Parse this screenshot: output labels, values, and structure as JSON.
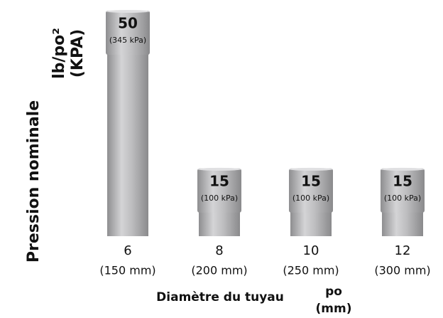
{
  "chart_data": {
    "type": "bar",
    "y_axis_label": "Pression nominale",
    "y_axis_units": [
      "lb/po²",
      "(KPA)"
    ],
    "x_axis_label": "Diamètre du tuyau",
    "x_axis_units": [
      "po",
      "(mm)"
    ],
    "categories": [
      "6",
      "8",
      "10",
      "12"
    ],
    "category_sublabels": [
      "(150 mm)",
      "(200 mm)",
      "(250 mm)",
      "(300 mm)"
    ],
    "values": [
      50,
      15,
      15,
      15
    ],
    "secondary_labels": [
      "(345 kPa)",
      "(100 kPa)",
      "(100 kPa)",
      "(100 kPa)"
    ],
    "color": "#b5b5b7"
  }
}
